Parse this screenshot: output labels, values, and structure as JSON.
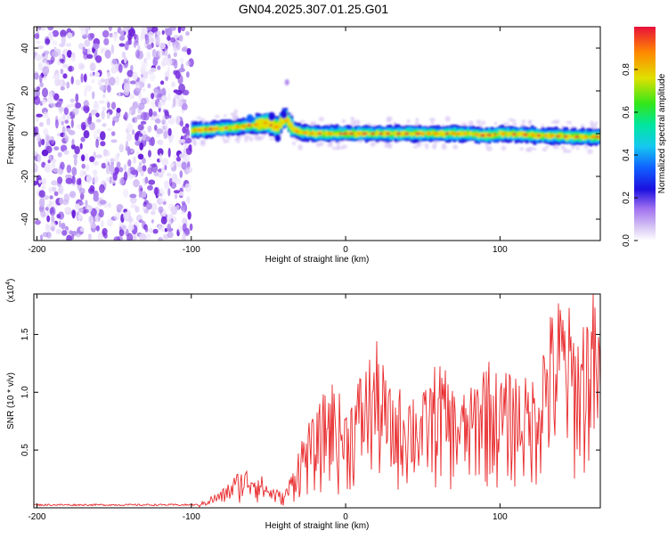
{
  "title": "GN04.2025.307.01.25.G01",
  "chart_data": [
    {
      "type": "heatmap",
      "xlabel": "Height of straight line (km)",
      "ylabel": "Frequency (Hz)",
      "xlim": [
        -202,
        165
      ],
      "ylim": [
        -50,
        50
      ],
      "xticks": [
        -200,
        -100,
        0,
        100
      ],
      "yticks": [
        40,
        20,
        0,
        -20,
        -40
      ],
      "colorbar": {
        "label": "Normalized spectral amplitude",
        "ticks": [
          "0.0",
          "0.2",
          "0.4",
          "0.6",
          "0.8"
        ],
        "range": [
          0,
          1
        ]
      },
      "colors": [
        "#ffffff",
        "#d9c8f5",
        "#7a2fe0",
        "#1c10e0",
        "#16a0ff",
        "#00e6a0",
        "#33e61a",
        "#e0e000",
        "#ff8800",
        "#e8103a"
      ],
      "regions": [
        {
          "name": "noise",
          "x_range": [
            -202,
            -100
          ],
          "y_range": [
            -50,
            50
          ],
          "description_level": "low"
        },
        {
          "name": "signal-band",
          "x_range": [
            -100,
            165
          ],
          "center_hz": 0,
          "width_hz": 6,
          "level": "high"
        }
      ],
      "signal_centerline": {
        "x": [
          -100,
          -80,
          -60,
          -52,
          -45,
          -40,
          -35,
          -30,
          -20,
          0,
          40,
          80,
          90,
          100,
          130,
          150,
          165
        ],
        "y": [
          1.5,
          2.5,
          4,
          5,
          3,
          8,
          2,
          0.5,
          0,
          0,
          0,
          0,
          -1,
          0,
          -1,
          -1.5,
          -1.5
        ]
      }
    },
    {
      "type": "line",
      "xlabel": "Height of straight line (km)",
      "ylabel": "SNR (10 * v/v)",
      "y_multiplier": "(x10",
      "y_multiplier_exp": "4",
      "y_multiplier_close": ")",
      "xlim": [
        -202,
        165
      ],
      "ylim": [
        0,
        1.85
      ],
      "xticks": [
        -200,
        -100,
        0,
        100
      ],
      "yticks": [
        0.5,
        1.0,
        1.5
      ],
      "color": "#e8282a",
      "envelope": {
        "x": [
          -202,
          -95,
          -90,
          -80,
          -70,
          -60,
          -50,
          -40,
          -35,
          -30,
          -25,
          -20,
          -10,
          0,
          10,
          20,
          30,
          40,
          50,
          60,
          70,
          80,
          90,
          100,
          110,
          120,
          130,
          140,
          150,
          160,
          165
        ],
        "y": [
          0.03,
          0.03,
          0.08,
          0.15,
          0.3,
          0.35,
          0.2,
          0.12,
          0.3,
          0.55,
          0.7,
          0.75,
          1.1,
          0.85,
          1.15,
          1.38,
          0.95,
          1.05,
          0.95,
          1.25,
          1.0,
          0.95,
          1.3,
          1.1,
          1.15,
          1.05,
          1.55,
          1.83,
          1.5,
          1.83,
          1.45
        ]
      }
    }
  ]
}
